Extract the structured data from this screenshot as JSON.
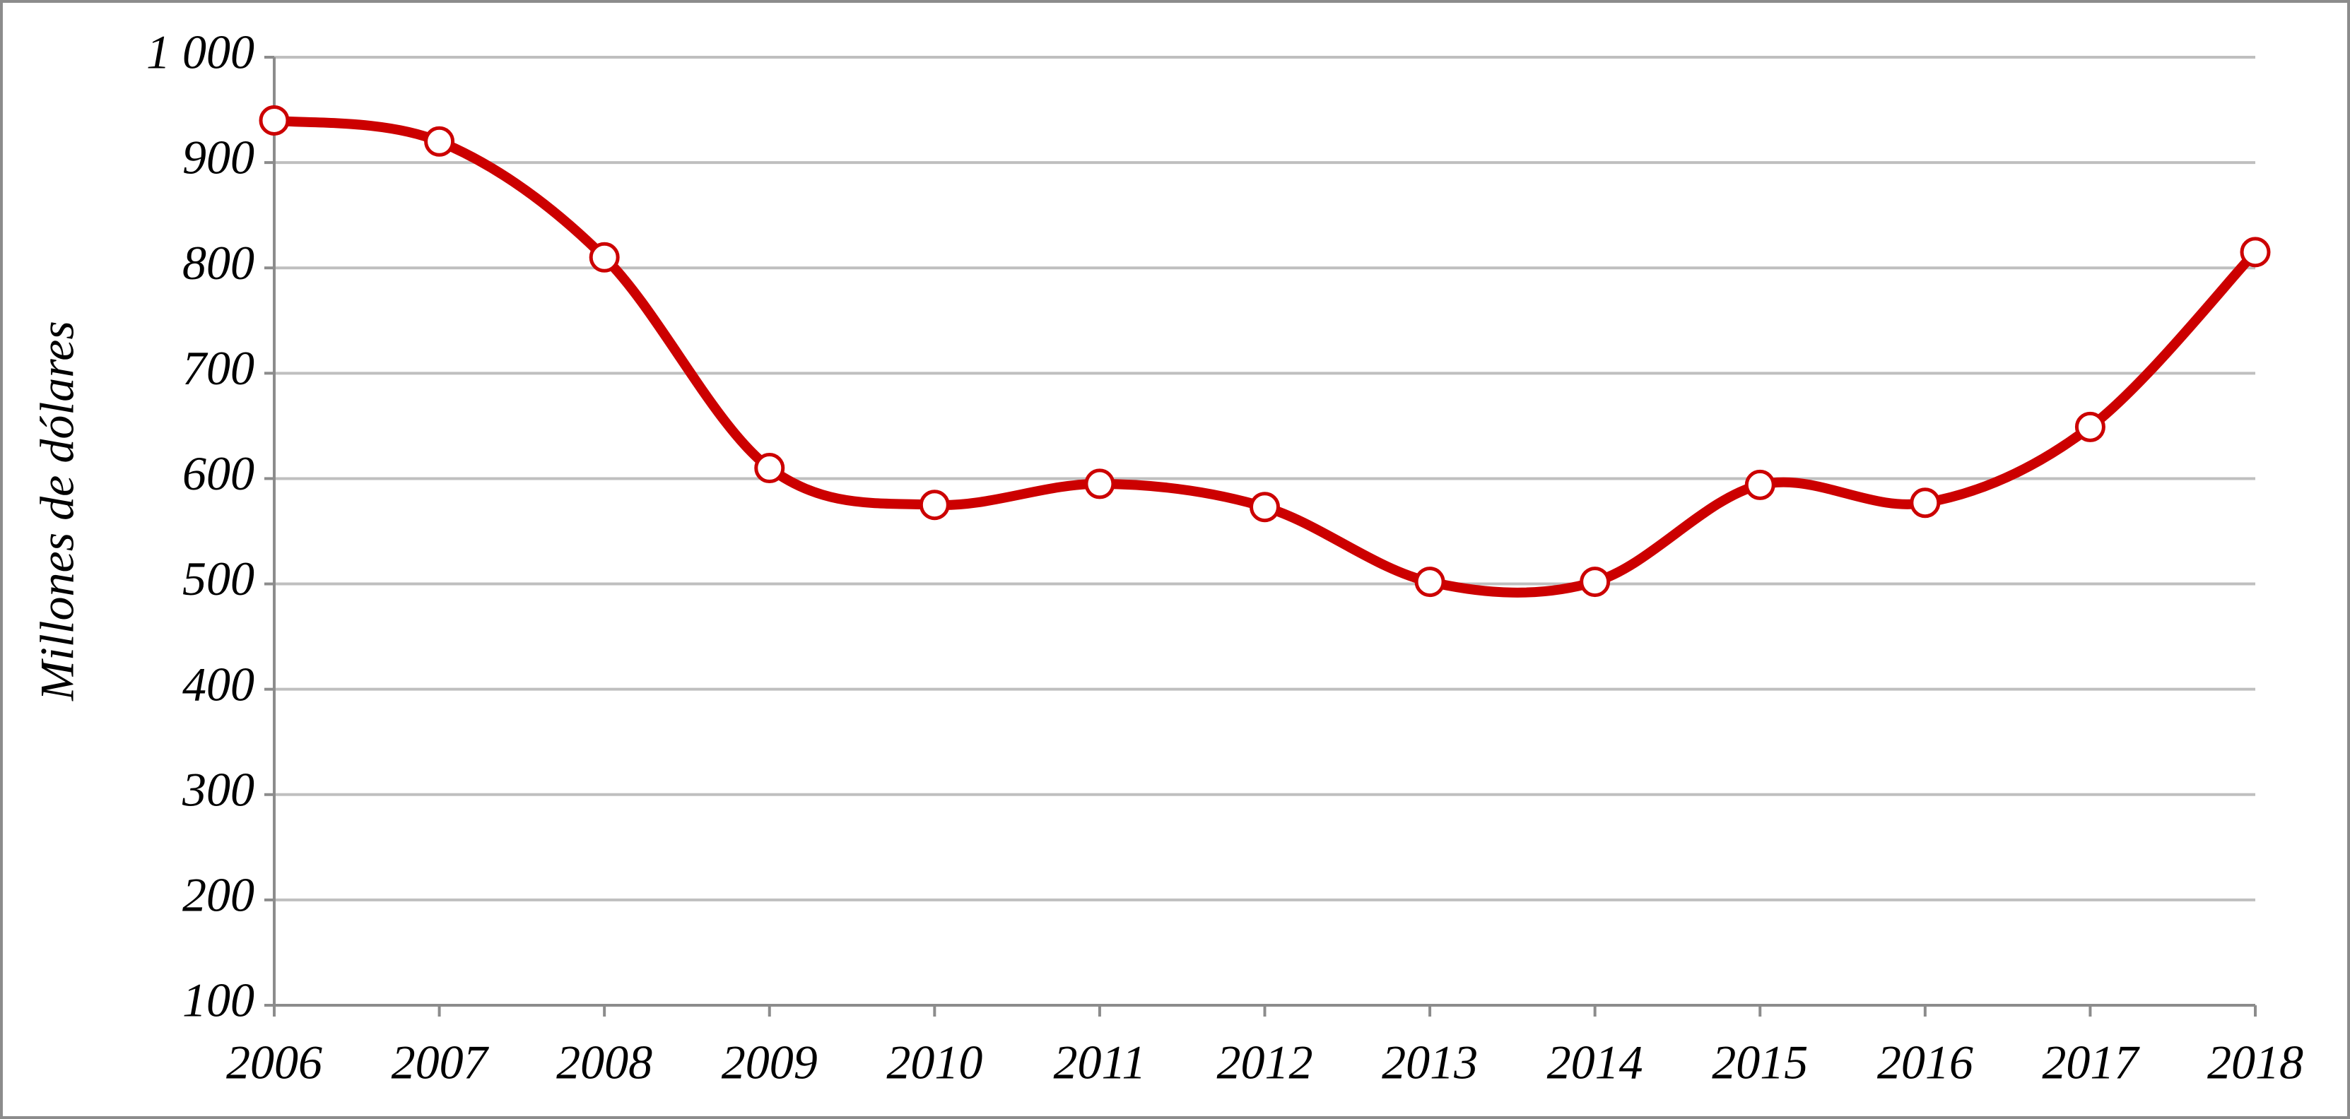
{
  "chart_data": {
    "type": "line",
    "y_label": "Millones de dólares",
    "categories": [
      "2006",
      "2007",
      "2008",
      "2009",
      "2010",
      "2011",
      "2012",
      "2013",
      "2014",
      "2015",
      "2016",
      "2017",
      "2018"
    ],
    "values": [
      940,
      920,
      810,
      610,
      575,
      595,
      573,
      502,
      502,
      594,
      577,
      649,
      815
    ],
    "color": "#cc0000",
    "ylim": [
      100,
      1000
    ],
    "yticks": [
      100,
      200,
      300,
      400,
      500,
      600,
      700,
      800,
      900,
      {
        "value": 1000,
        "label": "1 000"
      }
    ],
    "grid": true,
    "smooth": true
  }
}
